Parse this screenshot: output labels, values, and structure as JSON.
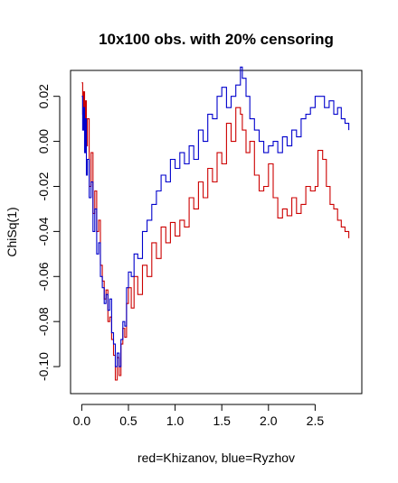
{
  "chart_data": {
    "type": "line",
    "title": "10x100 obs. with 20% censoring",
    "xlabel": "red=Khizanov, blue=Ryzhov",
    "ylabel": "ChiSq(1)",
    "xlim": [
      -0.12,
      3.0
    ],
    "ylim": [
      -0.112,
      0.0315
    ],
    "x_ticks": [
      "0.0",
      "0.5",
      "1.0",
      "1.5",
      "2.0",
      "2.5"
    ],
    "y_ticks": [
      "-0.10",
      "-0.08",
      "-0.06",
      "-0.04",
      "-0.02",
      "0.00",
      "0.02"
    ],
    "grid": false,
    "series": [
      {
        "color": "#cc0000",
        "x": [
          0.0,
          0.01,
          0.02,
          0.03,
          0.04,
          0.05,
          0.06,
          0.08,
          0.1,
          0.12,
          0.14,
          0.16,
          0.18,
          0.2,
          0.22,
          0.24,
          0.26,
          0.28,
          0.3,
          0.32,
          0.34,
          0.36,
          0.38,
          0.4,
          0.42,
          0.44,
          0.46,
          0.48,
          0.5,
          0.53,
          0.56,
          0.6,
          0.65,
          0.7,
          0.75,
          0.8,
          0.85,
          0.9,
          0.95,
          1.0,
          1.05,
          1.1,
          1.15,
          1.2,
          1.25,
          1.3,
          1.35,
          1.4,
          1.45,
          1.5,
          1.55,
          1.6,
          1.65,
          1.7,
          1.72,
          1.76,
          1.8,
          1.85,
          1.9,
          1.95,
          2.0,
          2.05,
          2.1,
          2.15,
          2.2,
          2.25,
          2.3,
          2.35,
          2.4,
          2.45,
          2.5,
          2.53,
          2.58,
          2.62,
          2.66,
          2.7,
          2.74,
          2.78,
          2.82,
          2.86
        ],
        "y": [
          0.026,
          0.012,
          0.022,
          0.008,
          0.018,
          -0.002,
          0.01,
          -0.02,
          -0.005,
          -0.032,
          -0.022,
          -0.04,
          -0.035,
          -0.055,
          -0.062,
          -0.07,
          -0.066,
          -0.08,
          -0.078,
          -0.088,
          -0.095,
          -0.106,
          -0.096,
          -0.104,
          -0.09,
          -0.083,
          -0.087,
          -0.072,
          -0.065,
          -0.074,
          -0.06,
          -0.068,
          -0.055,
          -0.06,
          -0.045,
          -0.052,
          -0.038,
          -0.045,
          -0.036,
          -0.042,
          -0.035,
          -0.038,
          -0.025,
          -0.03,
          -0.018,
          -0.025,
          -0.012,
          -0.018,
          -0.005,
          -0.01,
          0.008,
          0.0,
          0.015,
          0.012,
          0.005,
          -0.005,
          0.0,
          -0.015,
          -0.022,
          -0.02,
          -0.01,
          -0.025,
          -0.034,
          -0.03,
          -0.033,
          -0.025,
          -0.032,
          -0.028,
          -0.02,
          -0.022,
          -0.02,
          -0.004,
          -0.008,
          -0.02,
          -0.028,
          -0.03,
          -0.035,
          -0.038,
          -0.04,
          -0.043
        ]
      },
      {
        "color": "#0000cc",
        "x": [
          0.0,
          0.01,
          0.02,
          0.03,
          0.04,
          0.05,
          0.06,
          0.08,
          0.1,
          0.12,
          0.14,
          0.16,
          0.18,
          0.2,
          0.22,
          0.24,
          0.26,
          0.28,
          0.3,
          0.32,
          0.34,
          0.36,
          0.38,
          0.4,
          0.42,
          0.44,
          0.46,
          0.48,
          0.5,
          0.53,
          0.56,
          0.6,
          0.65,
          0.7,
          0.75,
          0.8,
          0.85,
          0.9,
          0.95,
          1.0,
          1.05,
          1.1,
          1.15,
          1.2,
          1.25,
          1.3,
          1.35,
          1.4,
          1.45,
          1.5,
          1.55,
          1.6,
          1.65,
          1.7,
          1.72,
          1.76,
          1.8,
          1.85,
          1.9,
          1.95,
          2.0,
          2.05,
          2.1,
          2.15,
          2.2,
          2.25,
          2.3,
          2.35,
          2.4,
          2.45,
          2.5,
          2.55,
          2.6,
          2.65,
          2.7,
          2.74,
          2.78,
          2.82,
          2.86
        ],
        "y": [
          0.02,
          0.005,
          0.015,
          -0.005,
          0.01,
          -0.015,
          -0.008,
          -0.025,
          -0.018,
          -0.04,
          -0.03,
          -0.05,
          -0.045,
          -0.06,
          -0.065,
          -0.072,
          -0.068,
          -0.075,
          -0.07,
          -0.085,
          -0.09,
          -0.1,
          -0.094,
          -0.1,
          -0.088,
          -0.08,
          -0.082,
          -0.065,
          -0.058,
          -0.06,
          -0.05,
          -0.052,
          -0.04,
          -0.035,
          -0.028,
          -0.022,
          -0.015,
          -0.018,
          -0.008,
          -0.012,
          -0.005,
          -0.01,
          -0.002,
          -0.008,
          0.005,
          0.0,
          0.012,
          0.01,
          0.02,
          0.024,
          0.015,
          0.02,
          0.025,
          0.033,
          0.028,
          0.02,
          0.01,
          0.005,
          0.0,
          -0.005,
          -0.002,
          0.0,
          -0.005,
          0.002,
          -0.002,
          0.005,
          0.002,
          0.01,
          0.012,
          0.015,
          0.02,
          0.02,
          0.015,
          0.018,
          0.012,
          0.015,
          0.01,
          0.008,
          0.005
        ]
      }
    ]
  }
}
